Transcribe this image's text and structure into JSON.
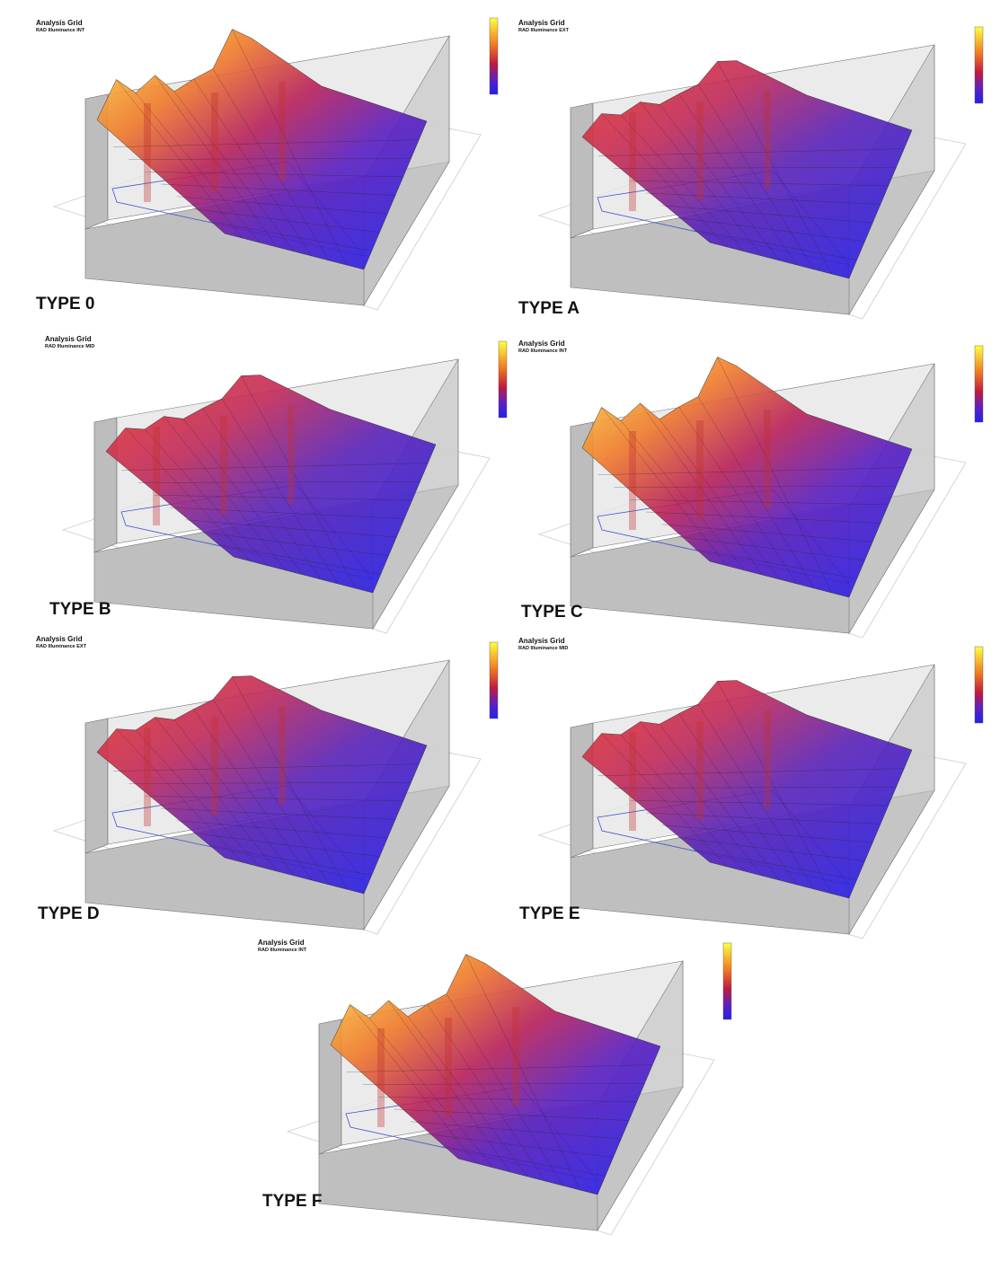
{
  "panels": [
    {
      "header": {
        "title": "Analysis Grid",
        "subtitle": "RAD Illuminance INT"
      },
      "label": "TYPE 0"
    },
    {
      "header": {
        "title": "Analysis Grid",
        "subtitle": "RAD Illuminance EXT"
      },
      "label": "TYPE A"
    },
    {
      "header": {
        "title": "Analysis Grid",
        "subtitle": "RAD Illuminance MID"
      },
      "label": "TYPE B"
    },
    {
      "header": {
        "title": "Analysis Grid",
        "subtitle": "RAD Illuminance INT"
      },
      "label": "TYPE C"
    },
    {
      "header": {
        "title": "Analysis Grid",
        "subtitle": "RAD Illuminance EXT"
      },
      "label": "TYPE D"
    },
    {
      "header": {
        "title": "Analysis Grid",
        "subtitle": "RAD Illuminance MID"
      },
      "label": "TYPE E"
    },
    {
      "header": {
        "title": "Analysis Grid",
        "subtitle": "RAD Illuminance INT"
      },
      "label": "TYPE F"
    }
  ]
}
